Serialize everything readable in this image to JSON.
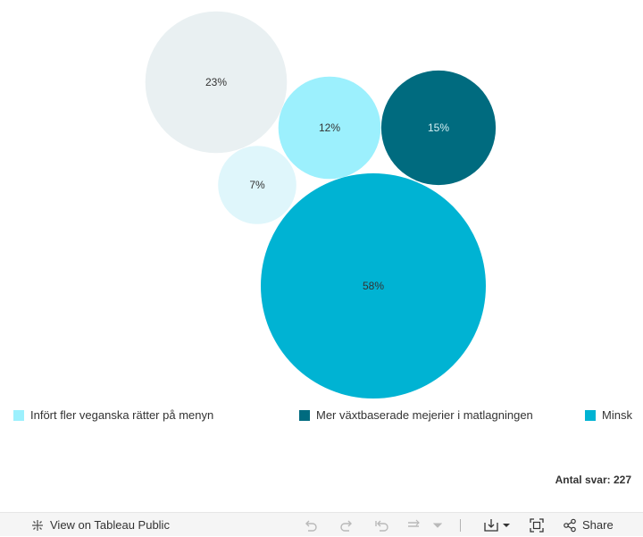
{
  "chart_data": {
    "type": "bubble",
    "series": [
      {
        "name": "Infört fler veganska rätter på menyn",
        "color": "#9cf0fd",
        "text_color": "#333333"
      },
      {
        "name": "Mer växtbaserade mejerier i matlagningen",
        "color": "#006b7f",
        "text_color": "#d6f0f4"
      },
      {
        "name": "Minsk",
        "color": "#00b3d3",
        "text_color": "#333333"
      }
    ],
    "bubbles": [
      {
        "label": "23%",
        "value": 23,
        "color": "#e9f0f2",
        "text_color": "#333333"
      },
      {
        "label": "12%",
        "value": 12,
        "series": "Infört fler veganska rätter på menyn",
        "color": "#9cf0fd",
        "text_color": "#333333"
      },
      {
        "label": "15%",
        "value": 15,
        "series": "Mer växtbaserade mejerier i matlagningen",
        "color": "#006b7f",
        "text_color": "#d6f0f4"
      },
      {
        "label": "7%",
        "value": 7,
        "color": "#dff6fb",
        "text_color": "#333333"
      },
      {
        "label": "58%",
        "value": 58,
        "series": "Minsk",
        "color": "#00b3d3",
        "text_color": "#333333"
      }
    ]
  },
  "note": "Antal svar: 227",
  "toolbar": {
    "view_label": "View on Tableau Public",
    "share_label": "Share"
  }
}
